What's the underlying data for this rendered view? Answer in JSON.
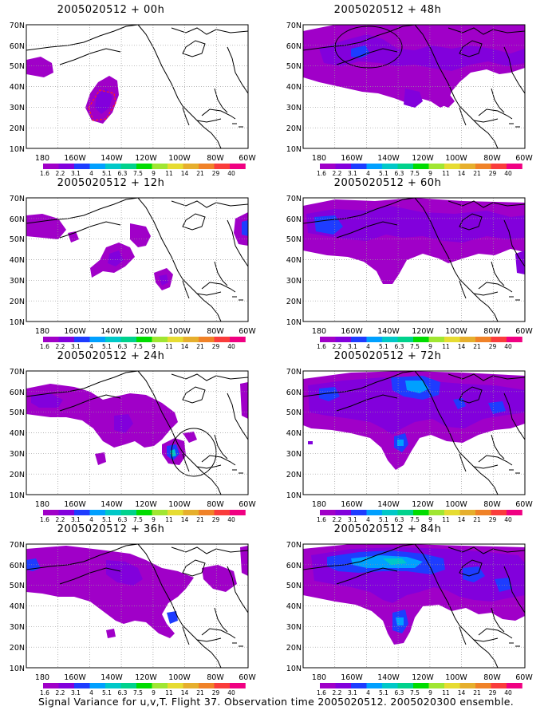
{
  "footer": "Signal Variance for u,v,T. Flight 37. Observation time 2005020512. 2005020300 ensemble.",
  "lat_labels": [
    "70N",
    "60N",
    "50N",
    "40N",
    "30N",
    "20N",
    "10N"
  ],
  "lon_labels": [
    "180",
    "160W",
    "140W",
    "120W",
    "100W",
    "80W",
    "60W"
  ],
  "colorbar": {
    "labels": [
      "1.6",
      "2.2",
      "3.1",
      "4",
      "5.1",
      "6.3",
      "7.5",
      "9",
      "11",
      "14",
      "21",
      "29",
      "40"
    ],
    "colors": [
      "#a000c8",
      "#8200dc",
      "#1e3cff",
      "#00a0ff",
      "#00c8c8",
      "#00d28c",
      "#00dc00",
      "#a0e632",
      "#e6dc32",
      "#e6af2d",
      "#f08228",
      "#fa3c3c",
      "#f00082"
    ]
  },
  "panels": [
    {
      "title": "2005020512 + 00h",
      "lead": "00h"
    },
    {
      "title": "2005020512 + 48h",
      "lead": "48h"
    },
    {
      "title": "2005020512 + 12h",
      "lead": "12h"
    },
    {
      "title": "2005020512 + 60h",
      "lead": "60h"
    },
    {
      "title": "2005020512 + 24h",
      "lead": "24h"
    },
    {
      "title": "2005020512 + 72h",
      "lead": "72h"
    },
    {
      "title": "2005020512 + 36h",
      "lead": "36h"
    },
    {
      "title": "2005020512 + 84h",
      "lead": "84h"
    }
  ]
}
